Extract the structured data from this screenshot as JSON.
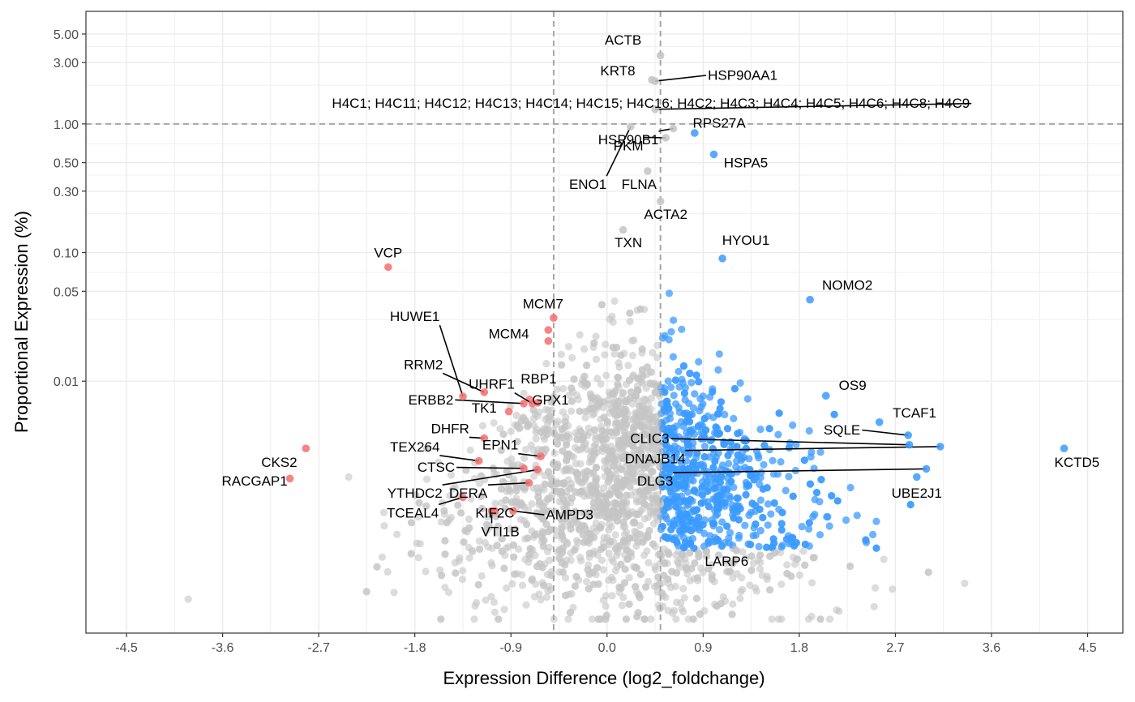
{
  "chart_data": {
    "type": "scatter",
    "title": "",
    "xlabel": "Expression Difference (log2_foldchange)",
    "ylabel": "Proportional Expression (%)",
    "xlim": [
      -4.88,
      4.83
    ],
    "ylim": [
      0.00011,
      7.5
    ],
    "y_scale": "log10",
    "x_ticks": [
      "-4.5",
      "-3.6",
      "-2.7",
      "-1.8",
      "-0.9",
      "0.0",
      "0.9",
      "1.8",
      "2.7",
      "3.6",
      "4.5"
    ],
    "x_tick_values": [
      -4.5,
      -3.6,
      -2.7,
      -1.8,
      -0.9,
      0.0,
      0.9,
      1.8,
      2.7,
      3.6,
      4.5
    ],
    "y_ticks": [
      "0.01",
      "0.05",
      "0.10",
      "0.30",
      "0.50",
      "1.00",
      "3.00",
      "5.00"
    ],
    "y_tick_values": [
      0.01,
      0.05,
      0.1,
      0.3,
      0.5,
      1.0,
      3.0,
      5.0
    ],
    "grid": true,
    "thresholds": {
      "x_low": -0.5,
      "x_high": 0.5,
      "y": 1.0
    },
    "colors": {
      "up": "#3b9bff",
      "down": "#f46e6e",
      "ns": "#c4c4c4",
      "threshold": "#a6a6a6",
      "panel_border": "#333333",
      "grid": "#ebebeb"
    },
    "labeled_points": [
      {
        "label": "ACTB",
        "x": 0.5,
        "y": 3.4,
        "group": "ns",
        "lx": 0.15,
        "ly": 4.5,
        "line": false
      },
      {
        "label": "KRT8",
        "x": 0.42,
        "y": 2.2,
        "group": "ns",
        "lx": 0.1,
        "ly": 2.6,
        "line": false
      },
      {
        "label": "HSP90AA1",
        "x": 0.45,
        "y": 2.15,
        "group": "ns",
        "lx": 1.27,
        "ly": 2.4,
        "line": true
      },
      {
        "label": "H4C1; H4C11; H4C12; H4C13; H4C14; H4C15; H4C16; H4C2; H4C3; H4C4; H4C5; H4C6; H4C8; H4C9",
        "x": 0.45,
        "y": 1.3,
        "group": "ns",
        "lx": 0.41,
        "ly": 1.45,
        "line": true
      },
      {
        "label": "RPS27A",
        "x": 0.82,
        "y": 0.85,
        "group": "up",
        "lx": 1.05,
        "ly": 1.02,
        "line": false
      },
      {
        "label": "HSP90B1",
        "x": 0.62,
        "y": 0.92,
        "group": "ns",
        "lx": 0.2,
        "ly": 0.76,
        "line": true
      },
      {
        "label": "PKM",
        "x": 0.55,
        "y": 0.78,
        "group": "ns",
        "lx": 0.2,
        "ly": 0.68,
        "line": true
      },
      {
        "label": "ENO1",
        "x": 0.22,
        "y": 0.95,
        "group": "ns",
        "lx": -0.18,
        "ly": 0.34,
        "line": true
      },
      {
        "label": "FLNA",
        "x": 0.38,
        "y": 0.43,
        "group": "ns",
        "lx": 0.3,
        "ly": 0.34,
        "line": false
      },
      {
        "label": "HSPA5",
        "x": 1.0,
        "y": 0.58,
        "group": "up",
        "lx": 1.3,
        "ly": 0.5,
        "line": false
      },
      {
        "label": "ACTA2",
        "x": 0.5,
        "y": 0.25,
        "group": "ns",
        "lx": 0.55,
        "ly": 0.2,
        "line": false
      },
      {
        "label": "TXN",
        "x": 0.15,
        "y": 0.15,
        "group": "ns",
        "lx": 0.2,
        "ly": 0.12,
        "line": false
      },
      {
        "label": "HYOU1",
        "x": 1.08,
        "y": 0.09,
        "group": "up",
        "lx": 1.3,
        "ly": 0.125,
        "line": false
      },
      {
        "label": "VCP",
        "x": -2.05,
        "y": 0.077,
        "group": "down",
        "lx": -2.05,
        "ly": 0.1,
        "line": false
      },
      {
        "label": "NOMO2",
        "x": 1.9,
        "y": 0.043,
        "group": "up",
        "lx": 2.25,
        "ly": 0.056,
        "line": false
      },
      {
        "label": "MCM7",
        "x": -0.5,
        "y": 0.031,
        "group": "down",
        "lx": -0.6,
        "ly": 0.04,
        "line": false
      },
      {
        "label": "HUWE1",
        "x": -1.35,
        "y": 0.0076,
        "group": "down",
        "lx": -1.8,
        "ly": 0.032,
        "line": true
      },
      {
        "label": "MCM4",
        "x": -0.55,
        "y": 0.025,
        "group": "down",
        "lx": -0.92,
        "ly": 0.0235,
        "line": false
      },
      {
        "label": "RRM2",
        "x": -1.15,
        "y": 0.0082,
        "group": "down",
        "lx": -1.72,
        "ly": 0.0135,
        "line": true
      },
      {
        "label": "RBP1",
        "x": -0.55,
        "y": 0.0205,
        "group": "down",
        "lx": -0.64,
        "ly": 0.0105,
        "line": false
      },
      {
        "label": "UHRF1",
        "x": -0.7,
        "y": 0.0067,
        "group": "down",
        "lx": -1.08,
        "ly": 0.0095,
        "line": true
      },
      {
        "label": "OS9",
        "x": 2.05,
        "y": 0.0077,
        "group": "up",
        "lx": 2.3,
        "ly": 0.0093,
        "line": false
      },
      {
        "label": "ERBB2",
        "x": -0.78,
        "y": 0.0067,
        "group": "down",
        "lx": -1.65,
        "ly": 0.0072,
        "line": true
      },
      {
        "label": "GPX1",
        "x": -0.65,
        "y": 0.0068,
        "group": "down",
        "lx": -0.53,
        "ly": 0.0072,
        "line": false
      },
      {
        "label": "TK1",
        "x": -0.92,
        "y": 0.0058,
        "group": "down",
        "lx": -1.15,
        "ly": 0.0062,
        "line": false
      },
      {
        "label": "TCAF1",
        "x": 2.55,
        "y": 0.0048,
        "group": "up",
        "lx": 2.88,
        "ly": 0.0057,
        "line": false
      },
      {
        "label": "DHFR",
        "x": -1.15,
        "y": 0.0036,
        "group": "down",
        "lx": -1.47,
        "ly": 0.0043,
        "line": true
      },
      {
        "label": "SQLE",
        "x": 2.82,
        "y": 0.0038,
        "group": "up",
        "lx": 2.2,
        "ly": 0.0042,
        "line": true
      },
      {
        "label": "CLIC3",
        "x": 2.83,
        "y": 0.0032,
        "group": "up",
        "lx": 0.4,
        "ly": 0.0036,
        "line": true
      },
      {
        "label": "EPN1",
        "x": -0.62,
        "y": 0.0026,
        "group": "down",
        "lx": -1.0,
        "ly": 0.0032,
        "line": true
      },
      {
        "label": "TEX264",
        "x": -1.2,
        "y": 0.0024,
        "group": "down",
        "lx": -1.8,
        "ly": 0.0031,
        "line": true
      },
      {
        "label": "KCTD5",
        "x": 4.28,
        "y": 0.003,
        "group": "up",
        "lx": 4.4,
        "ly": 0.00235,
        "line": false
      },
      {
        "label": "DNAJB14",
        "x": 3.12,
        "y": 0.0031,
        "group": "up",
        "lx": 0.45,
        "ly": 0.0025,
        "line": true
      },
      {
        "label": "CKS2",
        "x": -2.82,
        "y": 0.003,
        "group": "down",
        "lx": -3.07,
        "ly": 0.00235,
        "line": false
      },
      {
        "label": "CTSC",
        "x": -0.78,
        "y": 0.0021,
        "group": "down",
        "lx": -1.6,
        "ly": 0.00215,
        "line": true
      },
      {
        "label": "RACGAP1",
        "x": -2.97,
        "y": 0.00175,
        "group": "down",
        "lx": -3.3,
        "ly": 0.00168,
        "line": false
      },
      {
        "label": "DLG3",
        "x": 2.99,
        "y": 0.00208,
        "group": "up",
        "lx": 0.45,
        "ly": 0.00168,
        "line": true
      },
      {
        "label": "YTHDC2",
        "x": -0.65,
        "y": 0.00205,
        "group": "down",
        "lx": -1.8,
        "ly": 0.00135,
        "line": true
      },
      {
        "label": "DERA",
        "x": -0.73,
        "y": 0.00162,
        "group": "down",
        "lx": -1.3,
        "ly": 0.00135,
        "line": true
      },
      {
        "label": "UBE2J1",
        "x": 2.9,
        "y": 0.0018,
        "group": "up",
        "lx": 2.9,
        "ly": 0.00135,
        "line": false
      },
      {
        "label": "TCEAL4",
        "x": -1.35,
        "y": 0.00125,
        "group": "down",
        "lx": -1.82,
        "ly": 0.00095,
        "line": true
      },
      {
        "label": "KIF2C",
        "x": -1.05,
        "y": 0.00098,
        "group": "down",
        "lx": -1.05,
        "ly": 0.00095,
        "line": false
      },
      {
        "label": "AMPD3",
        "x": -0.88,
        "y": 0.00098,
        "group": "down",
        "lx": -0.35,
        "ly": 0.00092,
        "line": true
      },
      {
        "label": "VTI1B",
        "x": -1.08,
        "y": 0.00098,
        "group": "down",
        "lx": -1.0,
        "ly": 0.00068,
        "line": true
      },
      {
        "label": "LARP6",
        "x": 0.95,
        "y": 0.00055,
        "group": "up",
        "lx": 1.12,
        "ly": 0.0004,
        "line": false
      }
    ]
  }
}
